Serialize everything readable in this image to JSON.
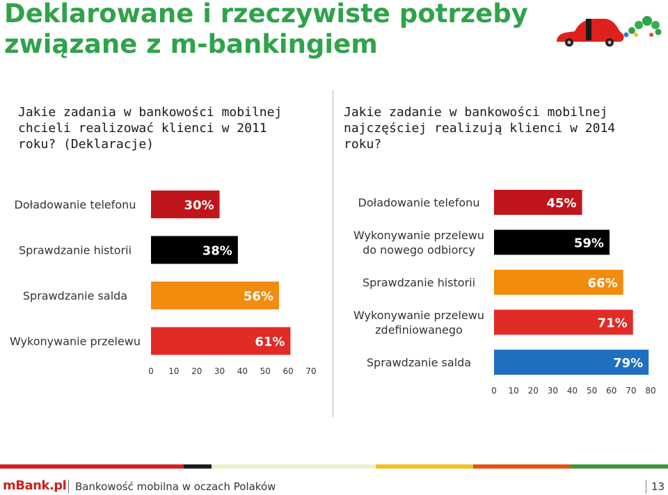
{
  "slide": {
    "title": "Deklarowane i rzeczywiste potrzeby związane z m-bankingiem"
  },
  "chart_data": [
    {
      "type": "bar",
      "orientation": "horizontal",
      "title": "Jakie zadania w bankowości mobilnej chcieli realizować klienci w 2011 roku? (Deklaracje)",
      "categories": [
        "Doładowanie telefonu",
        "Sprawdzanie historii",
        "Sprawdzanie salda",
        "Wykonywanie przelewu"
      ],
      "values": [
        30,
        38,
        56,
        61
      ],
      "data_labels": [
        "30%",
        "38%",
        "56%",
        "61%"
      ],
      "colors": [
        "#c0151b",
        "#000000",
        "#f28c0f",
        "#e02b26"
      ],
      "xlim": [
        0,
        70
      ],
      "xticks": [
        0,
        10,
        20,
        30,
        40,
        50,
        60,
        70
      ],
      "grid": false
    },
    {
      "type": "bar",
      "orientation": "horizontal",
      "title": "Jakie zadanie w bankowości mobilnej najczęściej realizują klienci w 2014 roku?",
      "categories": [
        "Doładowanie telefonu",
        "Wykonywanie przelewu do nowego odbiorcy",
        "Sprawdzanie historii",
        "Wykonywanie przelewu zdefiniowanego",
        "Sprawdzanie salda"
      ],
      "category_lines": [
        [
          "Doładowanie telefonu"
        ],
        [
          "Wykonywanie przelewu",
          "do nowego odbiorcy"
        ],
        [
          "Sprawdzanie historii"
        ],
        [
          "Wykonywanie przelewu",
          "zdefiniowanego"
        ],
        [
          "Sprawdzanie salda"
        ]
      ],
      "values": [
        45,
        59,
        66,
        71,
        79
      ],
      "data_labels": [
        "45%",
        "59%",
        "66%",
        "71%",
        "79%"
      ],
      "colors": [
        "#c0151b",
        "#000000",
        "#f28c0f",
        "#e02b26",
        "#1f6fc0"
      ],
      "xlim": [
        0,
        80
      ],
      "xticks": [
        0,
        10,
        20,
        30,
        40,
        50,
        60,
        70,
        80
      ],
      "grid": false
    }
  ],
  "footer": {
    "logo": "mBank.pl",
    "text": "Bankowość mobilna w oczach Polaków",
    "page": "13",
    "stripe_colors": [
      "#d62020",
      "#1e1e1e",
      "#eef0cf",
      "#f0c020",
      "#e85010",
      "#3a9a3a"
    ]
  }
}
